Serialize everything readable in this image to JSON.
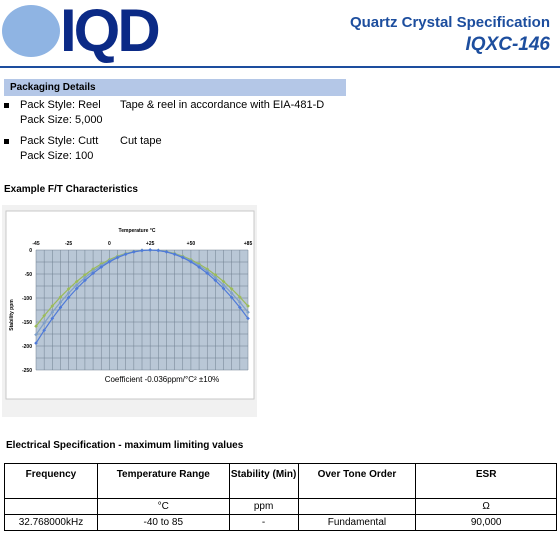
{
  "header": {
    "logo_text": "IQD",
    "title": "Quartz Crystal Specification",
    "model": "IQXC-146",
    "colors": {
      "logo_blue": "#0b2a86",
      "logo_ellipse": "#8fb4e3",
      "title_blue": "#1d4e9e"
    }
  },
  "packaging": {
    "heading": "Packaging Details",
    "items": [
      {
        "style": "Pack Style: Reel",
        "description": "Tape & reel in accordance with EIA-481-D",
        "size": "Pack Size: 5,000"
      },
      {
        "style": "Pack Style: Cutt",
        "description": "Cut tape",
        "size": "Pack Size: 100"
      }
    ]
  },
  "ft": {
    "heading": "Example F/T Characteristics"
  },
  "chart_data": {
    "type": "line",
    "title": "Temperature °C",
    "xlabel": "Temperature °C",
    "ylabel": "Stability ppm",
    "annotation": "Coefficient -0.036ppm/°C² ±10%",
    "xlim": [
      -45,
      85
    ],
    "ylim": [
      -250,
      0
    ],
    "x_ticks": [
      "-45",
      "-25",
      "0",
      "+25",
      "+50",
      "+85"
    ],
    "x_tick_values": [
      -45,
      -25,
      0,
      25,
      50,
      85
    ],
    "y_ticks": [
      "0",
      "-50",
      "-100",
      "-150",
      "-200",
      "-250"
    ],
    "y_tick_values": [
      0,
      -50,
      -100,
      -150,
      -200,
      -250
    ],
    "grid": true,
    "turnover": 25,
    "series": [
      {
        "coefficient": -0.0324,
        "color": "#9bbb59"
      },
      {
        "coefficient": -0.036,
        "color": "#7f9fc8"
      },
      {
        "coefficient": -0.0396,
        "color": "#4f7ad8"
      }
    ],
    "x": [
      -45,
      -40,
      -35,
      -30,
      -25,
      -20,
      -15,
      -10,
      -5,
      0,
      5,
      10,
      15,
      20,
      25,
      30,
      35,
      40,
      45,
      50,
      55,
      60,
      65,
      70,
      75,
      80,
      85
    ]
  },
  "electrical": {
    "heading": "Electrical Specification - maximum limiting values",
    "headers": [
      "Frequency",
      "Temperature Range",
      "Stability (Min)",
      "Over Tone Order",
      "ESR"
    ],
    "units": [
      "",
      "°C",
      "ppm",
      "",
      "Ω"
    ],
    "rows": [
      [
        "32.768000kHz",
        "-40 to 85",
        "-",
        "Fundamental",
        "90,000"
      ]
    ]
  }
}
